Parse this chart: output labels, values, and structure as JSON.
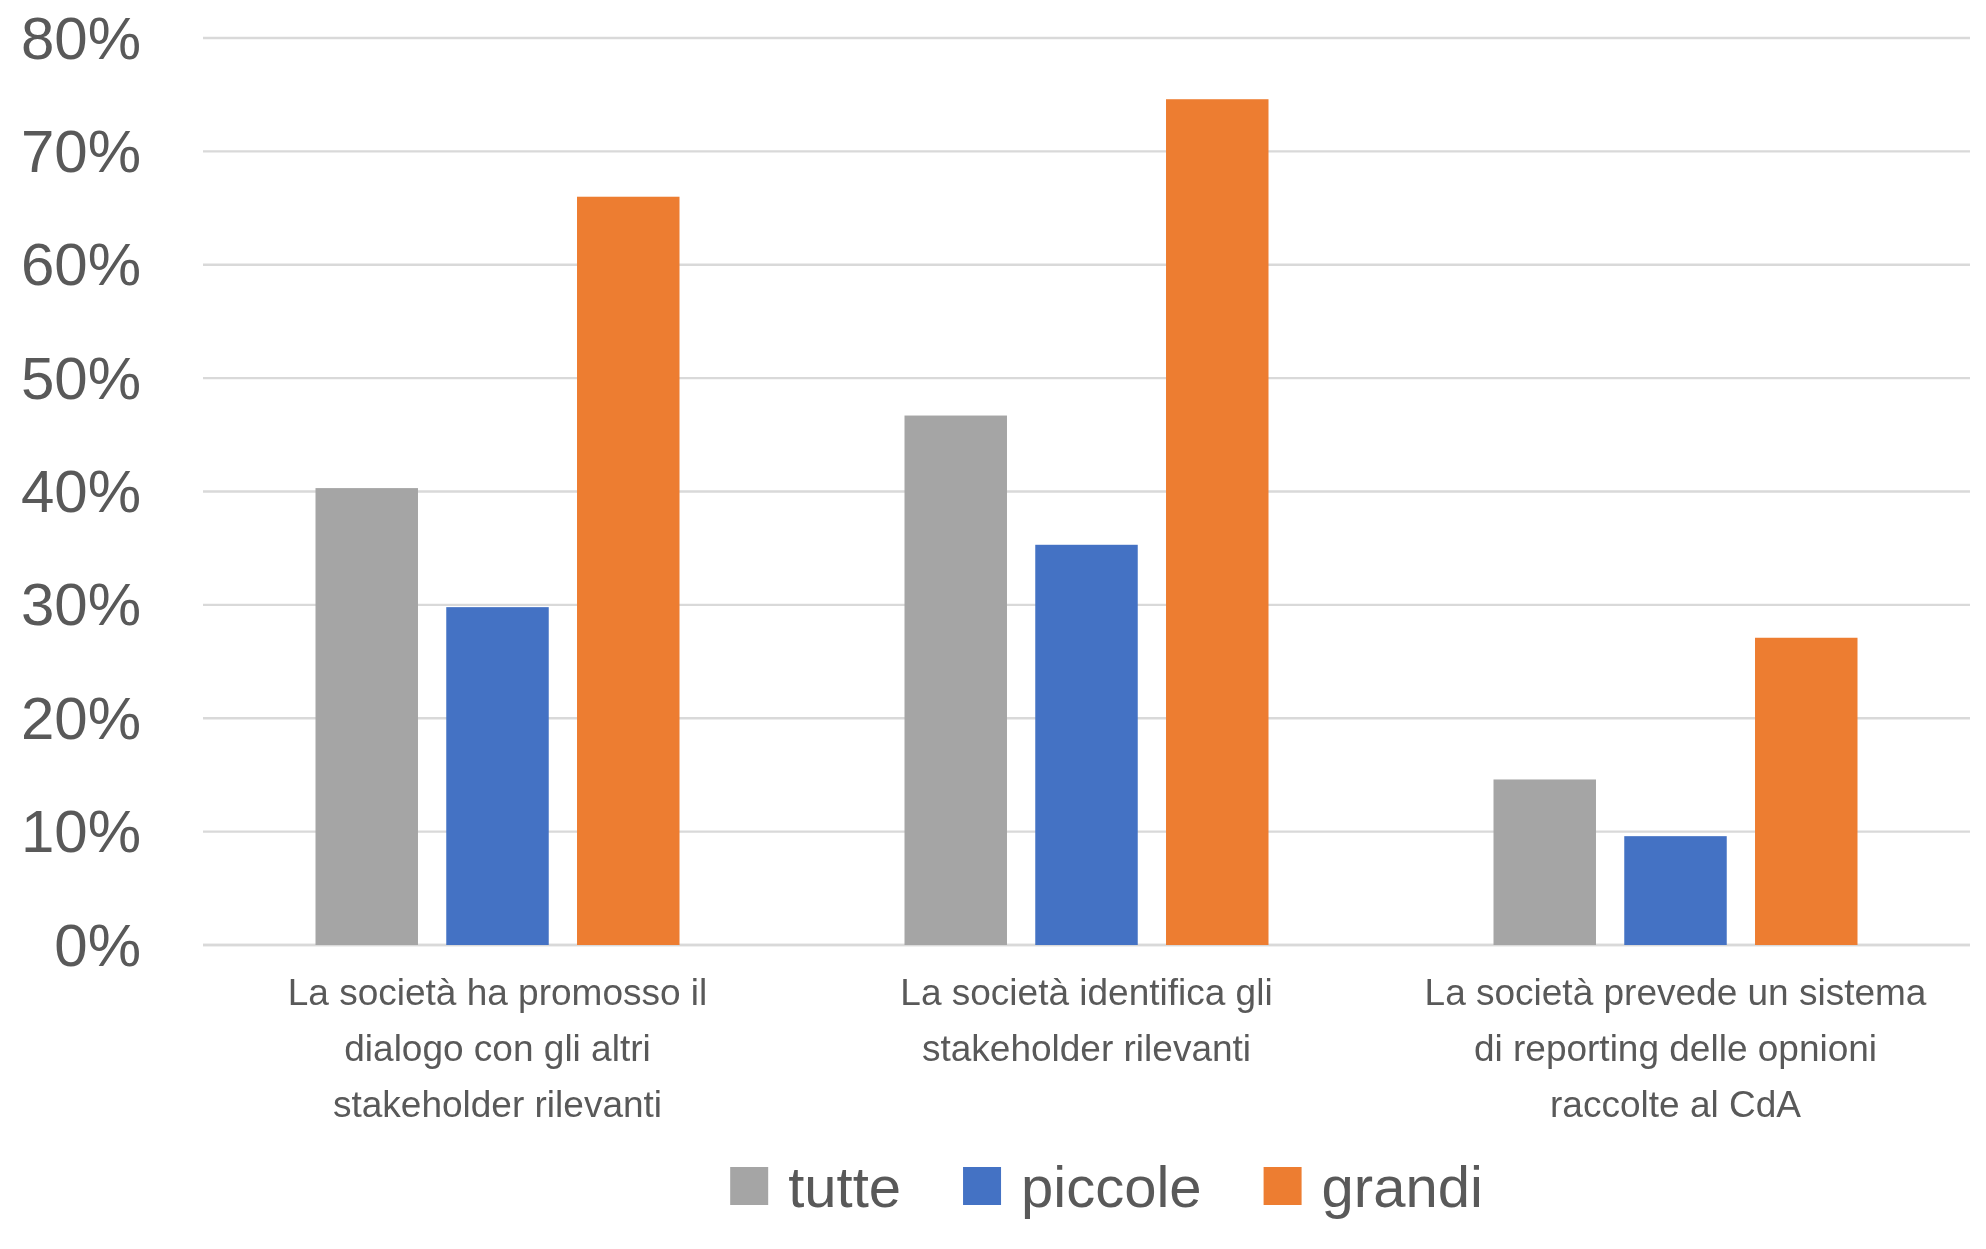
{
  "chart_data": {
    "type": "bar",
    "categories": [
      "La società ha promosso il dialogo con gli altri stakeholder rilevanti",
      "La società identifica gli stakeholder rilevanti",
      "La società prevede un sistema di reporting delle opnioni raccolte al CdA"
    ],
    "series": [
      {
        "name": "tutte",
        "color": "#a5a5a5",
        "values": [
          40.3,
          46.7,
          14.6
        ]
      },
      {
        "name": "piccole",
        "color": "#4472c4",
        "values": [
          29.8,
          35.3,
          9.6
        ]
      },
      {
        "name": "grandi",
        "color": "#ed7d31",
        "values": [
          66.0,
          74.6,
          27.1
        ]
      }
    ],
    "ylim": [
      0,
      80
    ],
    "yticks": [
      {
        "value": 0,
        "label": "0%"
      },
      {
        "value": 10,
        "label": "10%"
      },
      {
        "value": 20,
        "label": "20%"
      },
      {
        "value": 30,
        "label": "30%"
      },
      {
        "value": 40,
        "label": "40%"
      },
      {
        "value": 50,
        "label": "50%"
      },
      {
        "value": 60,
        "label": "60%"
      },
      {
        "value": 70,
        "label": "70%"
      },
      {
        "value": 80,
        "label": "80%"
      }
    ],
    "grid": "y",
    "legend": "bottom"
  }
}
